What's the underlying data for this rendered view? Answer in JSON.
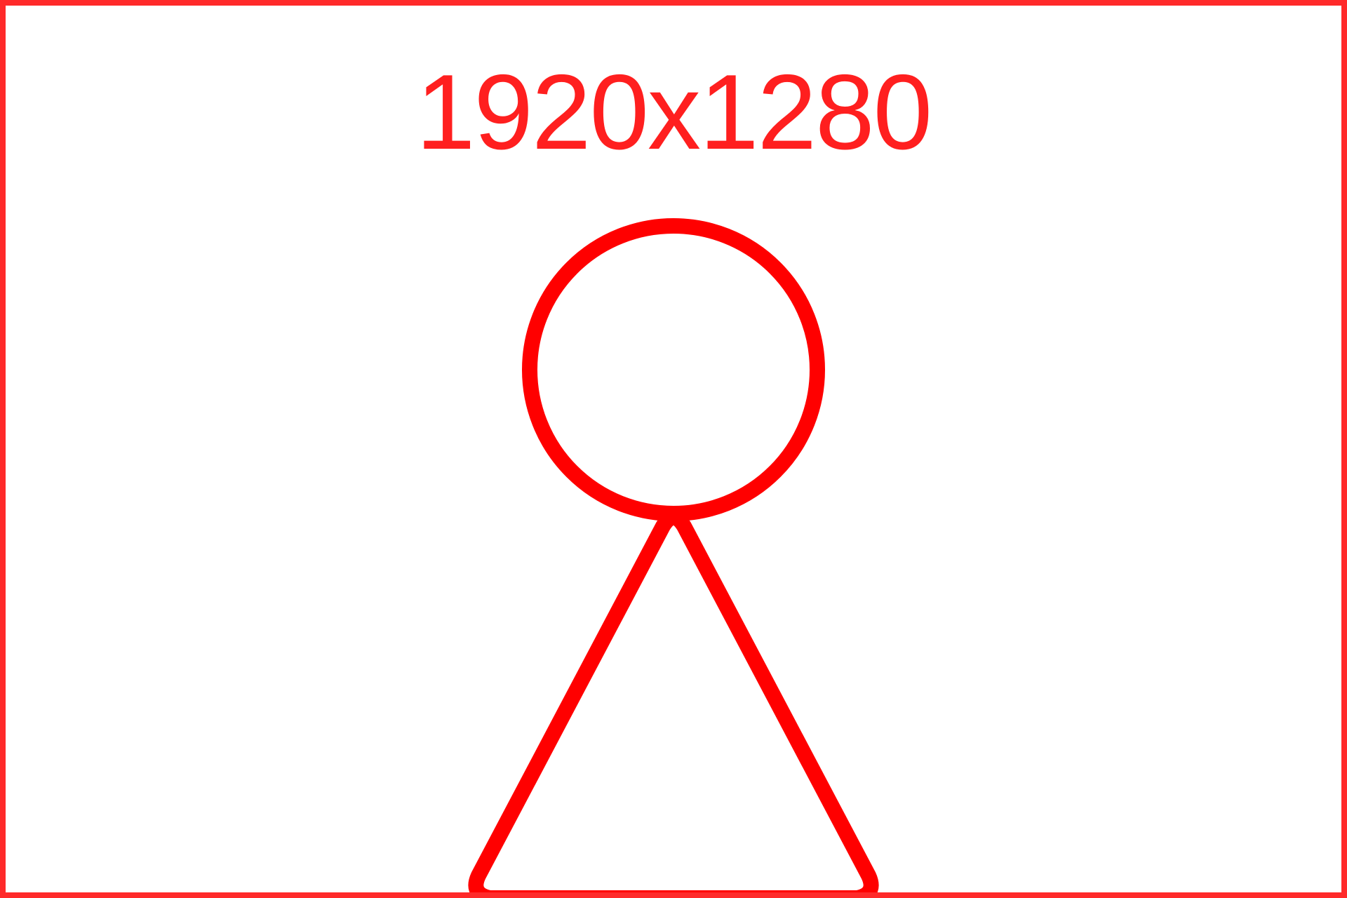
{
  "placeholder": {
    "dimension_label": "1920x1280",
    "icon": "person-placeholder-icon",
    "colors": {
      "border": "#ff2a2a",
      "text": "#ff1f1f",
      "icon_stroke": "#ff0000",
      "background": "#ffffff"
    }
  }
}
